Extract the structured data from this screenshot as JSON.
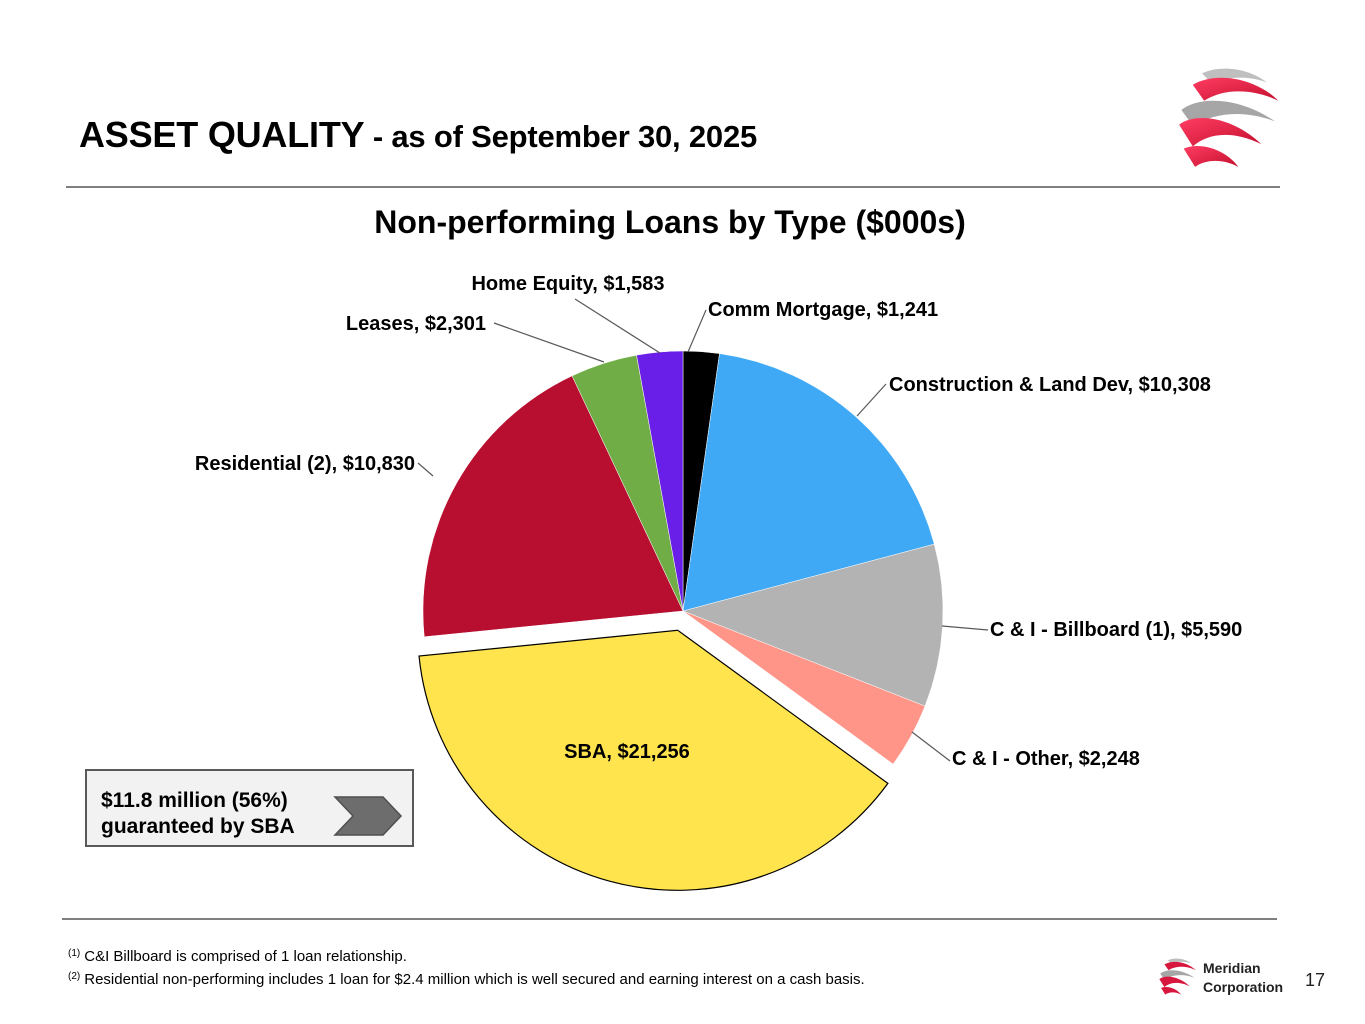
{
  "header": {
    "title_main": "ASSET QUALITY",
    "title_sub": " - as of September 30, 2025"
  },
  "chart_data": {
    "type": "pie",
    "title": "Non-performing Loans by Type ($000s)",
    "start_angle_deg": 0,
    "direction": "clockwise",
    "slices": [
      {
        "key": "comm_mortgage",
        "name": "Comm Mortgage",
        "value": 1241,
        "label": "Comm Mortgage, $1,241",
        "color": "#000000",
        "label_position": "outside"
      },
      {
        "key": "construction",
        "name": "Construction & Land Dev",
        "value": 10308,
        "label": "Construction & Land Dev, $10,308",
        "color": "#3fa9f5",
        "label_position": "outside"
      },
      {
        "key": "ci_billboard",
        "name": "C & I - Billboard (1)",
        "value": 5590,
        "label": "C & I - Billboard (1), $5,590",
        "color": "#b3b3b3",
        "label_position": "outside"
      },
      {
        "key": "ci_other",
        "name": "C & I - Other",
        "value": 2248,
        "label": "C & I - Other, $2,248",
        "color": "#ff9488",
        "label_position": "outside"
      },
      {
        "key": "sba",
        "name": "SBA",
        "value": 21256,
        "label": "SBA, $21,256",
        "color": "#ffe44d",
        "label_position": "inside",
        "exploded": true
      },
      {
        "key": "residential",
        "name": "Residential (2)",
        "value": 10830,
        "label": "Residential (2), $10,830",
        "color": "#b80f30",
        "label_position": "outside"
      },
      {
        "key": "leases",
        "name": "Leases",
        "value": 2301,
        "label": "Leases, $2,301",
        "color": "#70ad47",
        "label_position": "outside"
      },
      {
        "key": "home_equity",
        "name": "Home Equity",
        "value": 1583,
        "label": "Home Equity, $1,583",
        "color": "#6a1fe8",
        "label_position": "outside"
      }
    ]
  },
  "callout": {
    "line1": "$11.8 million (56%)",
    "line2": "guaranteed by SBA"
  },
  "footnotes": [
    {
      "marker": "(1)",
      "text": "C&I Billboard is comprised of 1 loan relationship."
    },
    {
      "marker": "(2)",
      "text": "Residential non-performing includes 1 loan for $2.4 million which is well secured and earning interest on a cash basis."
    }
  ],
  "brand": {
    "line1": "Meridian",
    "line2": "Corporation",
    "logo_icon": "meridian-swirl-icon"
  },
  "page_number": "17",
  "colors": {
    "accent": "#d8173f",
    "rule": "#7f7f7f"
  }
}
